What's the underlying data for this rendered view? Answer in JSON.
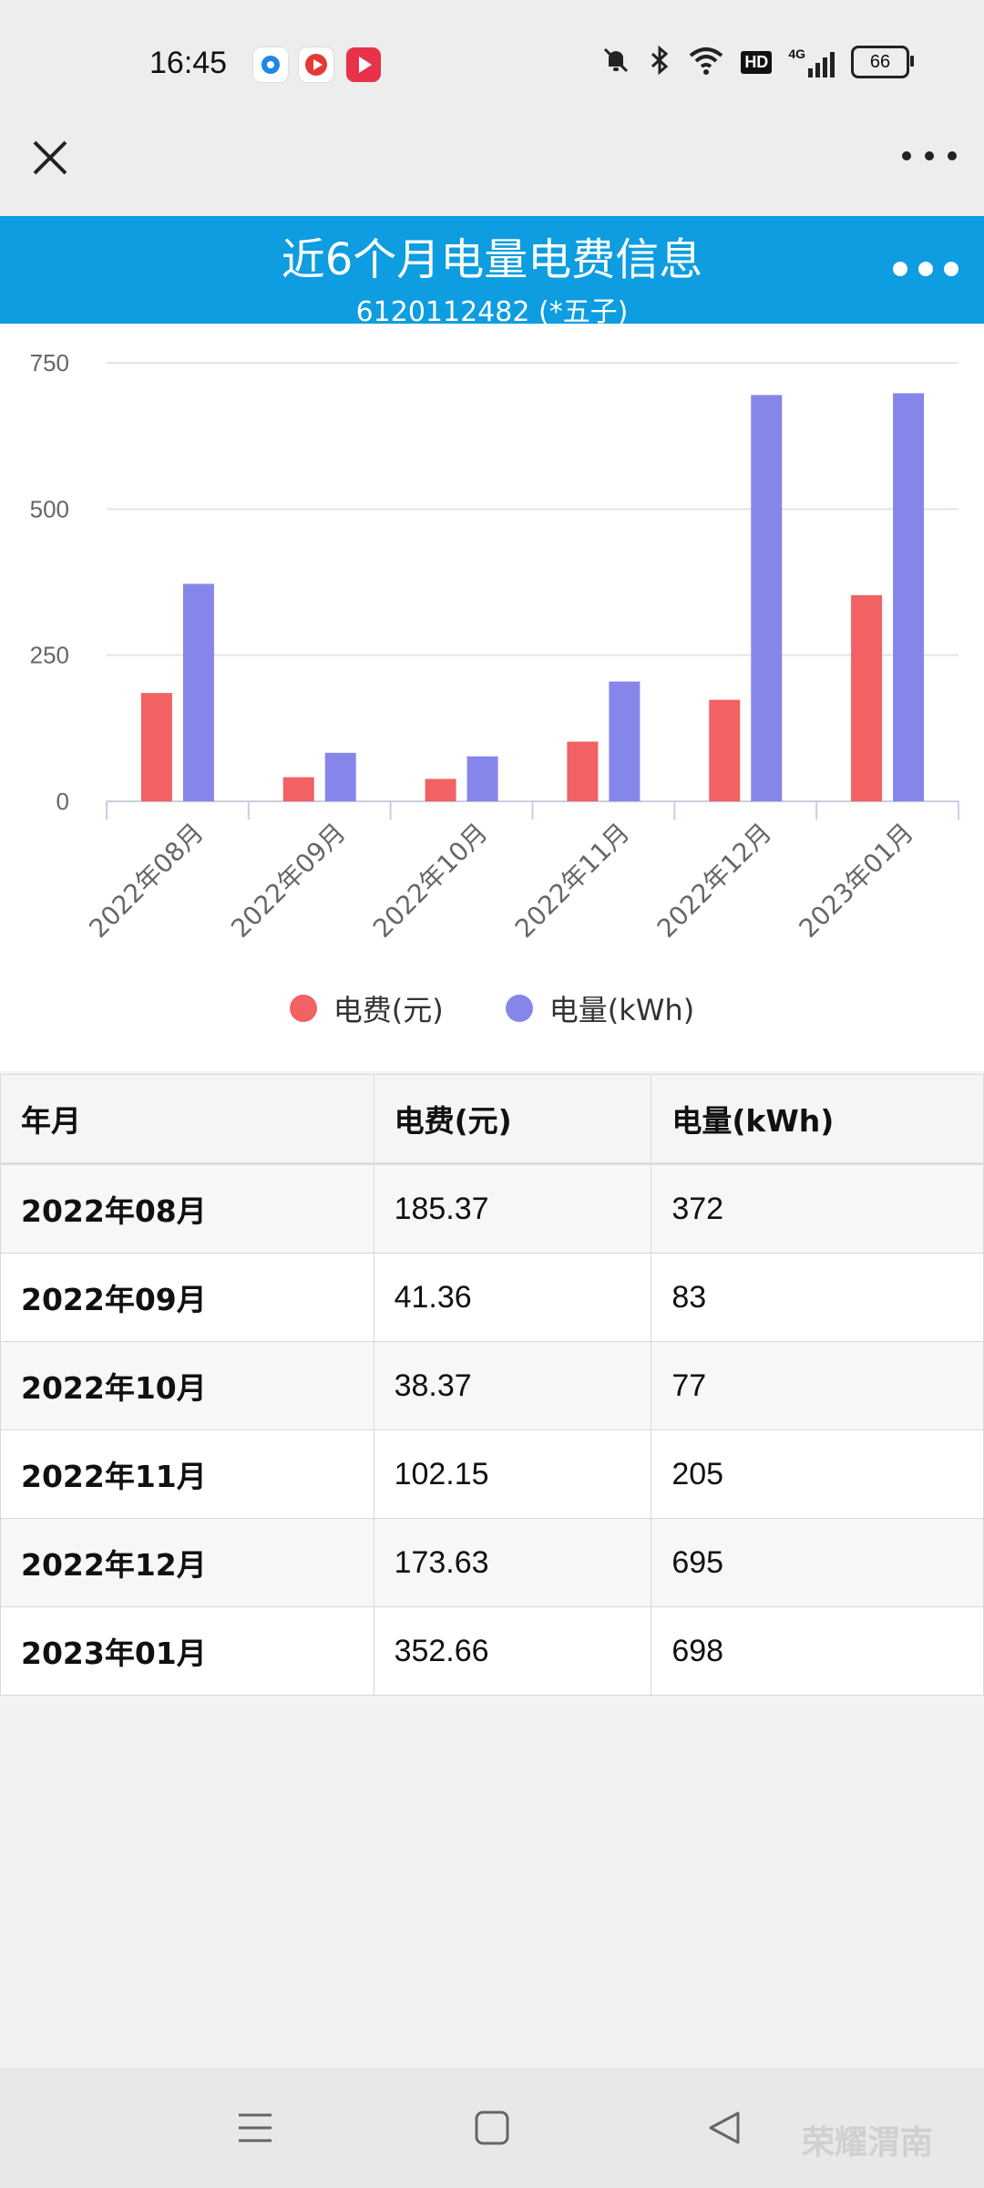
{
  "status": {
    "time": "16:45",
    "battery": "66",
    "network_label": "4G",
    "hd_label": "HD"
  },
  "header": {
    "title": "近6个月电量电费信息",
    "account": "6120112482 (*五子)"
  },
  "chart_data": {
    "type": "bar",
    "categories": [
      "2022年08月",
      "2022年09月",
      "2022年10月",
      "2022年11月",
      "2022年12月",
      "2023年01月"
    ],
    "series": [
      {
        "name": "电费(元)",
        "color": "#f26163",
        "values": [
          185.37,
          41.36,
          38.37,
          102.15,
          173.63,
          352.66
        ]
      },
      {
        "name": "电量(kWh)",
        "color": "#8686ea",
        "values": [
          372,
          83,
          77,
          205,
          695,
          698
        ]
      }
    ],
    "yticks": [
      0,
      250,
      500,
      750
    ],
    "ylim": [
      0,
      750
    ],
    "grid": true,
    "legend_position": "bottom"
  },
  "table": {
    "headers": [
      "年月",
      "电费(元)",
      "电量(kWh)"
    ],
    "rows": [
      [
        "2022年08月",
        "185.37",
        "372"
      ],
      [
        "2022年09月",
        "41.36",
        "83"
      ],
      [
        "2022年10月",
        "38.37",
        "77"
      ],
      [
        "2022年11月",
        "102.15",
        "205"
      ],
      [
        "2022年12月",
        "173.63",
        "695"
      ],
      [
        "2023年01月",
        "352.66",
        "698"
      ]
    ]
  },
  "watermark": "荣耀渭南"
}
